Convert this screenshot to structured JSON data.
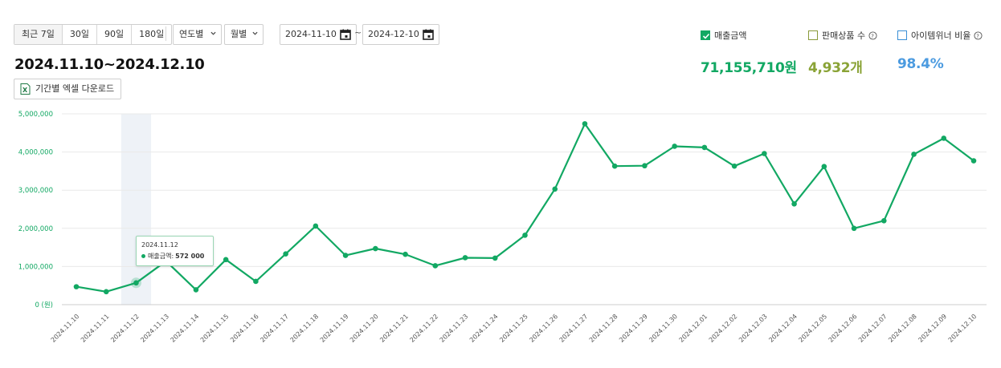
{
  "period_buttons": [
    "최근 7일",
    "30일",
    "90일",
    "180일"
  ],
  "dropdowns": {
    "year": "연도별",
    "month": "월별"
  },
  "date_range": {
    "start": "2024-11-10",
    "separator": "~",
    "end": "2024-12-10"
  },
  "range_title": "2024.11.10~2024.12.10",
  "excel_button": "기간별 엑셀 다운로드",
  "legend": [
    {
      "label": "매출금액",
      "checked": true,
      "color": "#12a863"
    },
    {
      "label": "판매상품 수",
      "checked": false,
      "color": "#8a9a3a"
    },
    {
      "label": "아이템위너 비율",
      "checked": false,
      "color": "#3a8fd6"
    }
  ],
  "totals": {
    "revenue": "71,155,710원",
    "products": "4,932개",
    "ratio": "98.4%"
  },
  "tooltip": {
    "date": "2024.11.12",
    "label": "매출금액:",
    "value": "572 000"
  },
  "chart_data": {
    "type": "line",
    "ylim": [
      0,
      5000000
    ],
    "yticks": [
      "0 (원)",
      "1,000,000",
      "2,000,000",
      "3,000,000",
      "4,000,000",
      "5,000,000"
    ],
    "categories": [
      "2024.11.10",
      "2024.11.11",
      "2024.11.12",
      "2024.11.13",
      "2024.11.14",
      "2024.11.15",
      "2024.11.16",
      "2024.11.17",
      "2024.11.18",
      "2024.11.19",
      "2024.11.20",
      "2024.11.21",
      "2024.11.22",
      "2024.11.23",
      "2024.11.24",
      "2024.11.25",
      "2024.11.26",
      "2024.11.27",
      "2024.11.28",
      "2024.11.29",
      "2024.11.30",
      "2024.12.01",
      "2024.12.02",
      "2024.12.03",
      "2024.12.04",
      "2024.12.05",
      "2024.12.06",
      "2024.12.07",
      "2024.12.08",
      "2024.12.09",
      "2024.12.10"
    ],
    "series": [
      {
        "name": "매출금액",
        "color": "#12a863",
        "values": [
          470000,
          340000,
          572000,
          1140000,
          390000,
          1180000,
          610000,
          1330000,
          2060000,
          1290000,
          1470000,
          1320000,
          1020000,
          1230000,
          1220000,
          1820000,
          3030000,
          4740000,
          3630000,
          3640000,
          4150000,
          4120000,
          3630000,
          3960000,
          2640000,
          3620000,
          2000000,
          2200000,
          3940000,
          4360000,
          3770000
        ]
      }
    ],
    "highlight_index": 2,
    "grid": true
  }
}
